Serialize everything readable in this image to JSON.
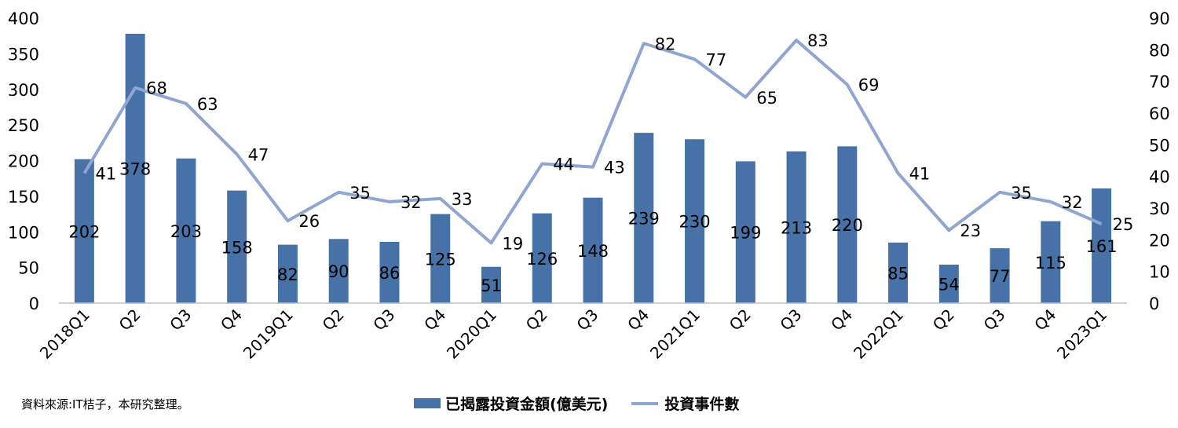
{
  "chart_data": {
    "type": "bar+line",
    "categories": [
      "2018Q1",
      "Q2",
      "Q3",
      "Q4",
      "2019Q1",
      "Q2",
      "Q3",
      "Q4",
      "2020Q1",
      "Q2",
      "Q3",
      "Q4",
      "2021Q1",
      "Q2",
      "Q3",
      "Q4",
      "2022Q1",
      "Q2",
      "Q3",
      "Q4",
      "2023Q1"
    ],
    "series": [
      {
        "name": "已揭露投資金額(億美元)",
        "type": "bar",
        "axis": "left",
        "color": "#4672a8",
        "values": [
          202,
          378,
          203,
          158,
          82,
          90,
          86,
          125,
          51,
          126,
          148,
          239,
          230,
          199,
          213,
          220,
          85,
          54,
          77,
          115,
          161
        ]
      },
      {
        "name": "投資事件數",
        "type": "line",
        "axis": "right",
        "color": "#8fa7d0",
        "values": [
          41,
          68,
          63,
          47,
          26,
          35,
          32,
          33,
          19,
          44,
          43,
          82,
          77,
          65,
          83,
          69,
          41,
          23,
          35,
          32,
          25
        ]
      }
    ],
    "y_left": {
      "range": [
        0,
        400
      ],
      "ticks": [
        0,
        50,
        100,
        150,
        200,
        250,
        300,
        350,
        400
      ]
    },
    "y_right": {
      "range": [
        0,
        90
      ],
      "ticks": [
        0,
        10,
        20,
        30,
        40,
        50,
        60,
        70,
        80,
        90
      ]
    },
    "grid": false,
    "legend_position": "bottom-center"
  },
  "source_note": "資料來源:IT桔子，本研究整理。",
  "legend": {
    "bar_label": "已揭露投資金額(億美元)",
    "line_label": "投資事件數"
  }
}
